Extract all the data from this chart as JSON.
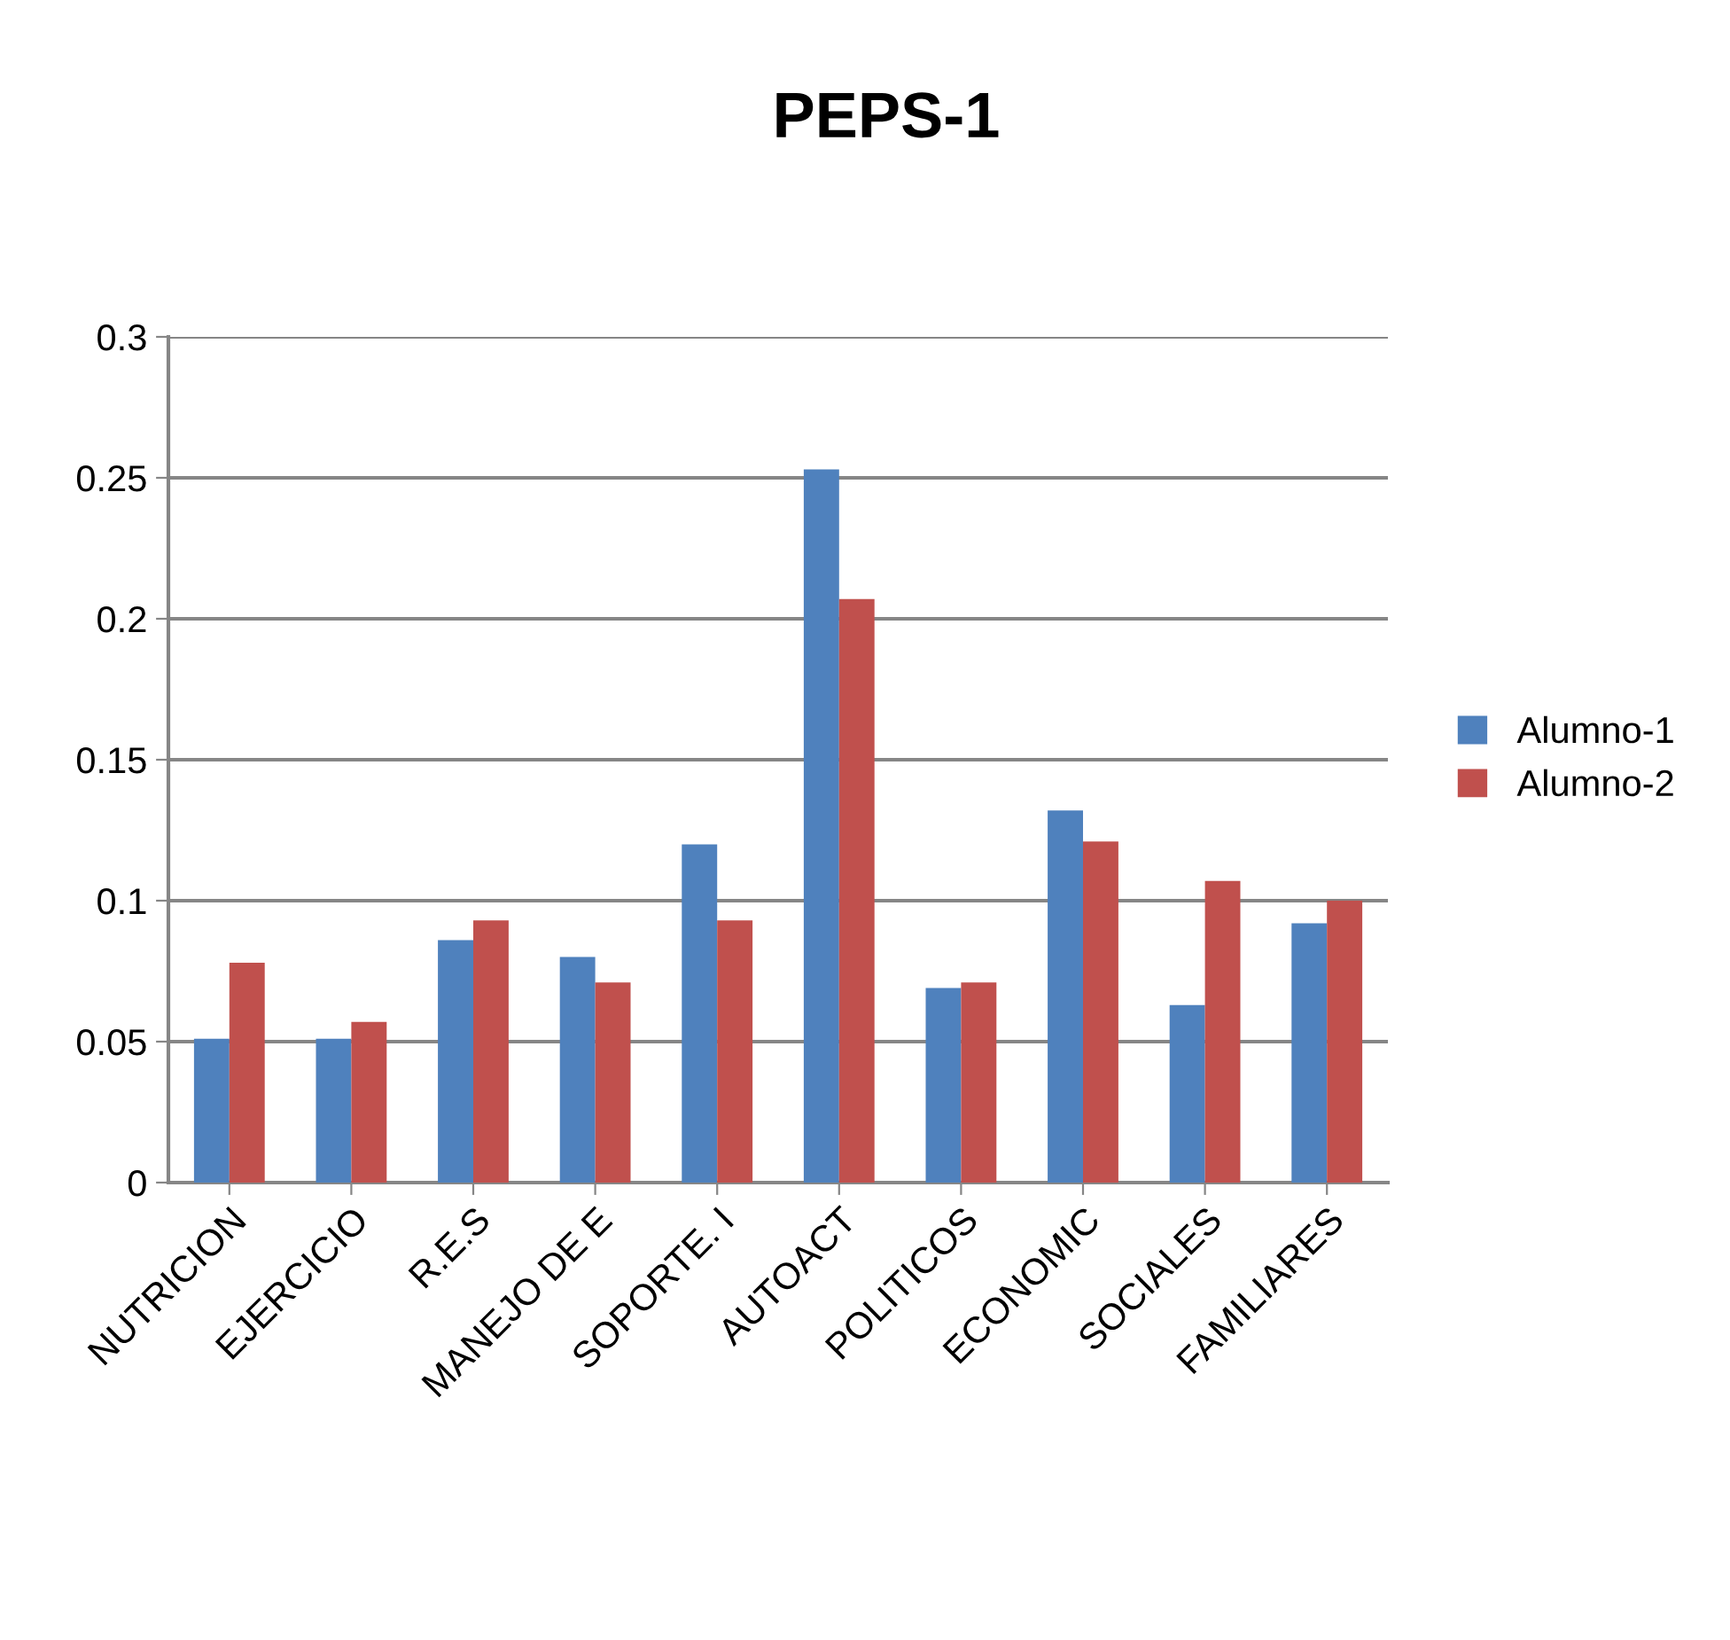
{
  "chart_data": {
    "type": "bar",
    "title": "PEPS-1",
    "categories": [
      "NUTRICION",
      "EJERCICIO",
      "R.E.S",
      "MANEJO DE E",
      "SOPORTE. I",
      "AUTOACT",
      "POLITICOS",
      "ECONOMIC",
      "SOCIALES",
      "FAMILIARES"
    ],
    "series": [
      {
        "name": "Alumno-1",
        "color": "#4f81bd",
        "values": [
          0.051,
          0.051,
          0.086,
          0.08,
          0.12,
          0.253,
          0.069,
          0.132,
          0.063,
          0.092
        ]
      },
      {
        "name": "Alumno-2",
        "color": "#c0504d",
        "values": [
          0.078,
          0.057,
          0.093,
          0.071,
          0.093,
          0.207,
          0.071,
          0.121,
          0.107,
          0.1
        ]
      }
    ],
    "ylim": [
      0,
      0.3
    ],
    "yticks": [
      0,
      0.05,
      0.1,
      0.15,
      0.2,
      0.25,
      0.3
    ],
    "grid": "y",
    "legend": "right"
  }
}
